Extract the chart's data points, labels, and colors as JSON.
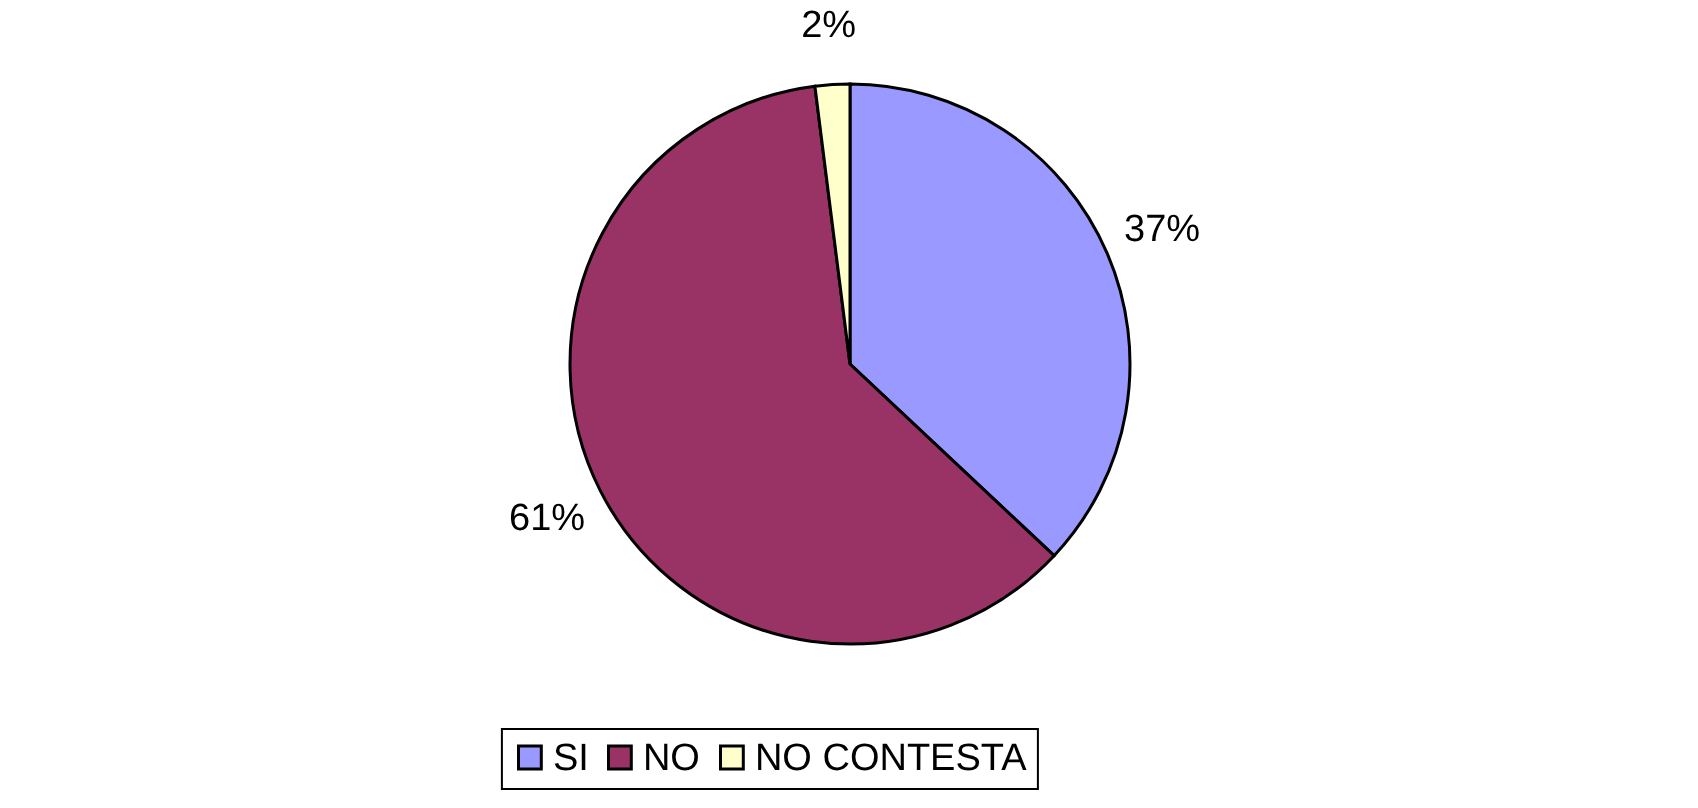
{
  "chart_data": {
    "type": "pie",
    "categories": [
      "SI",
      "NO",
      "NO CONTESTA"
    ],
    "values": [
      37,
      61,
      2
    ],
    "colors": [
      "#9999ff",
      "#993366",
      "#ffffcc"
    ],
    "value_labels": [
      "37%",
      "61%",
      "2%"
    ],
    "legend": "bottom"
  }
}
